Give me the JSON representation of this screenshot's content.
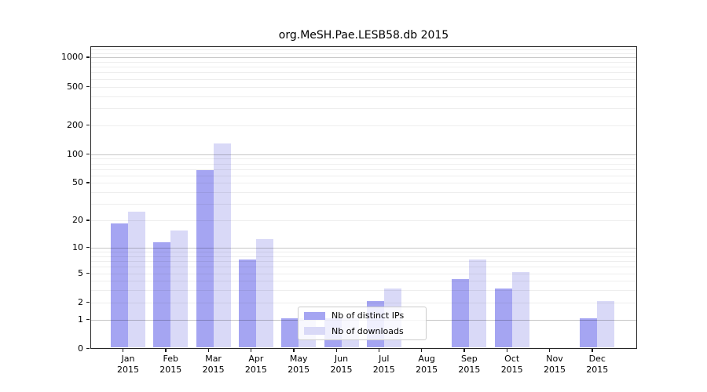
{
  "figure": {
    "title": "org.MeSH.Pae.LESB58.db 2015"
  },
  "chart_data": {
    "type": "bar",
    "title": "org.MeSH.Pae.LESB58.db 2015",
    "categories": [
      "Jan 2015",
      "Feb 2015",
      "Mar 2015",
      "Apr 2015",
      "May 2015",
      "Jun 2015",
      "Jul 2015",
      "Aug 2015",
      "Sep 2015",
      "Oct 2015",
      "Nov 2015",
      "Dec 2015"
    ],
    "series": [
      {
        "name": "Nb of distinct IPs",
        "color": "#a5a5f2",
        "values": [
          18,
          11,
          66,
          7,
          1,
          1,
          2,
          0,
          4,
          3,
          0,
          1
        ]
      },
      {
        "name": "Nb of downloads",
        "color": "#d9d9f7",
        "values": [
          24,
          15,
          125,
          12,
          1,
          1,
          3,
          0,
          7,
          5,
          0,
          2
        ]
      }
    ],
    "y_ticks": [
      0,
      1,
      2,
      5,
      10,
      20,
      50,
      100,
      200,
      500,
      1000
    ],
    "y_scale": "log10(value+1)",
    "ylim": [
      0,
      1280
    ],
    "xlabel": "",
    "ylabel": "",
    "grid": "horizontal major and minor gridlines",
    "legend_position": "inside, lower center-left",
    "background_color": "#ffffff",
    "text_color": "#000000"
  }
}
